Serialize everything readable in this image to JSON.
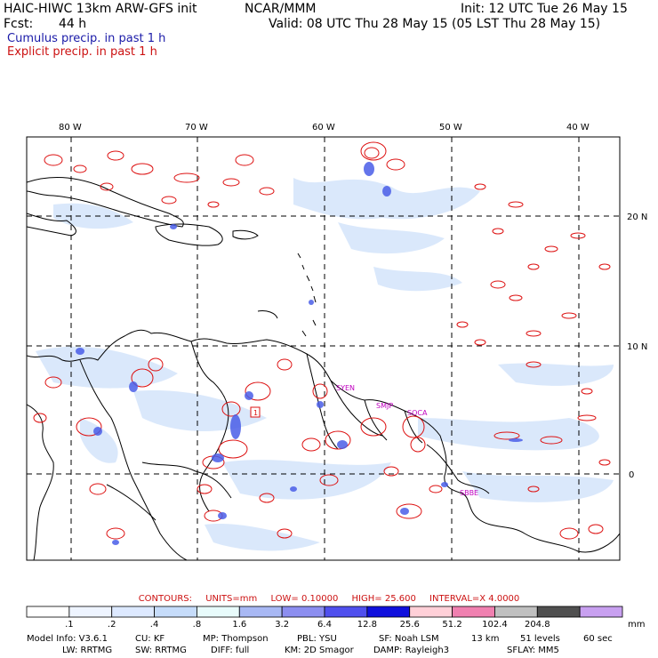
{
  "header": {
    "model_title": "HAIC-HIWC 13km ARW-GFS init",
    "org": "NCAR/MMM",
    "init": "Init: 12 UTC Tue 26 May 15",
    "fcst_label": "Fcst:",
    "fcst_value": "44 h",
    "valid": "Valid: 08 UTC Thu 28 May 15 (05 LST Thu 28 May 15)",
    "cumulus": "Cumulus precip. in past 1 h",
    "explicit": "Explicit precip. in past 1 h"
  },
  "map": {
    "lon_labels": [
      "80 W",
      "70 W",
      "60 W",
      "50 W",
      "40 W"
    ],
    "lat_labels": [
      "20 N",
      "10 N",
      "0"
    ],
    "stations": [
      "SYEN",
      "SMJP",
      "SOCA",
      "SBBE",
      "1"
    ]
  },
  "contours": {
    "label": "CONTOURS:",
    "units": "UNITS=mm",
    "low": "LOW= 0.10000",
    "high": "HIGH= 25.600",
    "interval": "INTERVAL=X 4.0000"
  },
  "colorbar": {
    "ticks": [
      ".1",
      ".2",
      ".4",
      ".8",
      "1.6",
      "3.2",
      "6.4",
      "12.8",
      "25.6",
      "51.2",
      "102.4",
      "204.8"
    ],
    "units": "mm",
    "colors": [
      "#ffffff",
      "#eef4ff",
      "#dde9ff",
      "#c6dcfa",
      "#e8fbfb",
      "#a8b8f4",
      "#8c8ef0",
      "#5050ee",
      "#1010dd",
      "#ffd0d8",
      "#f080b0",
      "#c0c0c0",
      "#505050",
      "#c8a0f0"
    ]
  },
  "model_info": {
    "line1": [
      "Model Info: V3.6.1",
      "CU: KF",
      "MP: Thompson",
      "PBL: YSU",
      "SF: Noah LSM",
      "13 km",
      "51 levels",
      "60 sec"
    ],
    "line2": [
      "LW: RRTMG",
      "SW: RRTMG",
      "DIFF: full",
      "KM: 2D Smagor",
      "DAMP: Rayleigh3",
      "SFLAY: MM5"
    ]
  }
}
